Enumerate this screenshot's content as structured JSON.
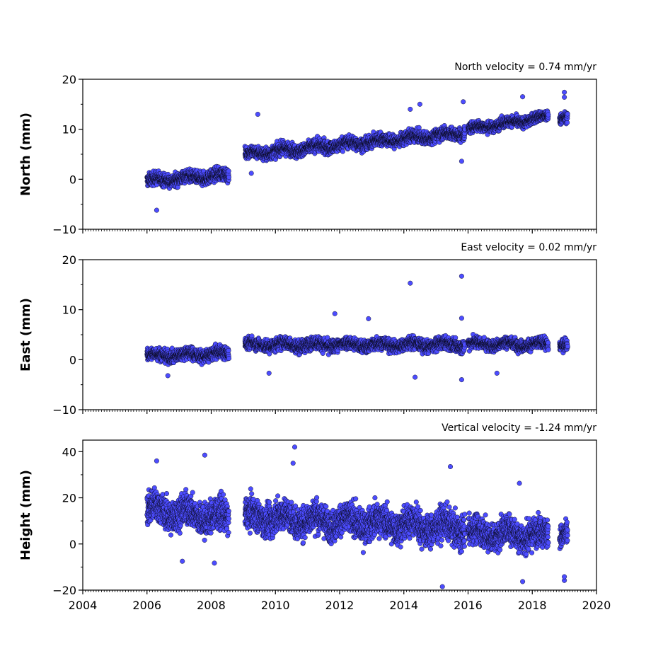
{
  "chart_data": [
    {
      "type": "scatter",
      "title": "North velocity = 0.74 mm/yr",
      "ylabel": "North (mm)",
      "xlim": [
        2004,
        2020
      ],
      "ylim": [
        -10,
        20
      ],
      "yticks": [
        -10,
        0,
        10,
        20
      ],
      "xtick_labels_shown": false,
      "marker_color": "#4c4cff",
      "marker_edge": "#000000",
      "series": [
        {
          "segments": [
            {
              "x_start": 2006.0,
              "x_end": 2008.55,
              "y_start": -0.3,
              "y_end": 0.8,
              "scatter": 1.2
            },
            {
              "x_start": 2009.05,
              "x_end": 2015.9,
              "y_start": 5.0,
              "y_end": 9.3,
              "scatter": 1.2
            },
            {
              "x_start": 2016.0,
              "x_end": 2018.5,
              "y_start": 10.0,
              "y_end": 12.5,
              "scatter": 1.0
            },
            {
              "x_start": 2018.85,
              "x_end": 2019.1,
              "y_start": 12.3,
              "y_end": 12.3,
              "scatter": 1.0
            }
          ],
          "outliers": [
            [
              2006.3,
              -6.2
            ],
            [
              2009.45,
              13.0
            ],
            [
              2014.2,
              14.0
            ],
            [
              2014.5,
              15.0
            ],
            [
              2015.85,
              15.5
            ],
            [
              2017.7,
              16.5
            ],
            [
              2019.0,
              17.4
            ],
            [
              2019.0,
              16.4
            ],
            [
              2015.8,
              3.6
            ],
            [
              2009.25,
              1.2
            ]
          ]
        }
      ]
    },
    {
      "type": "scatter",
      "title": "East velocity = 0.02 mm/yr",
      "ylabel": "East (mm)",
      "xlim": [
        2004,
        2020
      ],
      "ylim": [
        -10,
        20
      ],
      "yticks": [
        -10,
        0,
        10,
        20
      ],
      "xtick_labels_shown": false,
      "marker_color": "#4c4cff",
      "marker_edge": "#000000",
      "series": [
        {
          "segments": [
            {
              "x_start": 2006.0,
              "x_end": 2008.55,
              "y_start": 0.8,
              "y_end": 1.2,
              "scatter": 1.2
            },
            {
              "x_start": 2009.05,
              "x_end": 2015.9,
              "y_start": 3.0,
              "y_end": 3.0,
              "scatter": 1.2
            },
            {
              "x_start": 2016.0,
              "x_end": 2018.5,
              "y_start": 3.2,
              "y_end": 3.0,
              "scatter": 1.1
            },
            {
              "x_start": 2018.85,
              "x_end": 2019.1,
              "y_start": 3.0,
              "y_end": 3.0,
              "scatter": 1.1
            }
          ],
          "outliers": [
            [
              2014.2,
              15.3
            ],
            [
              2015.8,
              16.7
            ],
            [
              2011.85,
              9.2
            ],
            [
              2012.9,
              8.2
            ],
            [
              2015.8,
              8.3
            ],
            [
              2015.8,
              -4.0
            ],
            [
              2014.35,
              -3.5
            ],
            [
              2006.65,
              -3.2
            ],
            [
              2009.8,
              -2.7
            ],
            [
              2016.9,
              -2.7
            ]
          ]
        }
      ]
    },
    {
      "type": "scatter",
      "title": "Vertical velocity = -1.24 mm/yr",
      "ylabel": "Height (mm)",
      "xlim": [
        2004,
        2020
      ],
      "ylim": [
        -20,
        45
      ],
      "yticks": [
        -20,
        0,
        20,
        40
      ],
      "xticks": [
        2004,
        2006,
        2008,
        2010,
        2012,
        2014,
        2016,
        2018,
        2020
      ],
      "xtick_labels_shown": true,
      "marker_color": "#4c4cff",
      "marker_edge": "#000000",
      "series": [
        {
          "segments": [
            {
              "x_start": 2006.0,
              "x_end": 2008.55,
              "y_start": 15.0,
              "y_end": 11.0,
              "scatter": 6.5
            },
            {
              "x_start": 2009.05,
              "x_end": 2015.9,
              "y_start": 12.0,
              "y_end": 7.0,
              "scatter": 6.5
            },
            {
              "x_start": 2016.0,
              "x_end": 2018.5,
              "y_start": 5.0,
              "y_end": 4.0,
              "scatter": 6.0
            },
            {
              "x_start": 2018.85,
              "x_end": 2019.1,
              "y_start": 4.0,
              "y_end": 4.0,
              "scatter": 5.0
            }
          ],
          "outliers": [
            [
              2010.6,
              42.0
            ],
            [
              2007.8,
              38.5
            ],
            [
              2010.55,
              35.0
            ],
            [
              2006.3,
              36.0
            ],
            [
              2015.45,
              33.5
            ],
            [
              2017.6,
              26.3
            ],
            [
              2015.2,
              -18.5
            ],
            [
              2017.7,
              -16.3
            ],
            [
              2019.0,
              -15.8
            ],
            [
              2019.0,
              -14.2
            ],
            [
              2007.1,
              -7.5
            ],
            [
              2008.1,
              -8.3
            ]
          ]
        }
      ]
    }
  ]
}
